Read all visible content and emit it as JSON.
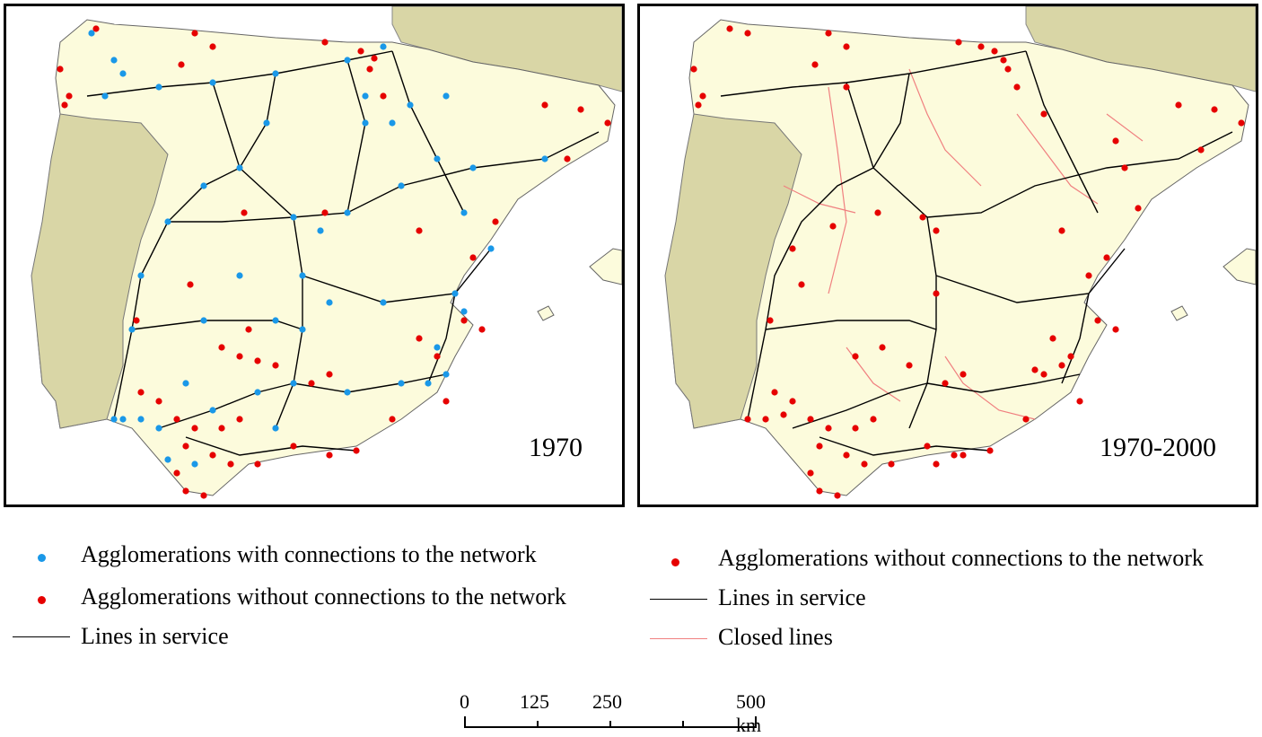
{
  "panels": [
    {
      "id": "left",
      "label": "1970"
    },
    {
      "id": "right",
      "label": "1970-2000"
    }
  ],
  "legend_left": [
    {
      "symbol": "dot",
      "color": "#1a98e8",
      "text": "Agglomerations with connections to the network"
    },
    {
      "symbol": "dot",
      "color": "#e60000",
      "text": "Agglomerations without connections to the network"
    },
    {
      "symbol": "line",
      "color": "#000000",
      "text": "Lines in service"
    }
  ],
  "legend_right": [
    {
      "symbol": "dot",
      "color": "#e60000",
      "text": "Agglomerations without connections to the network"
    },
    {
      "symbol": "line",
      "color": "#000000",
      "text": "Lines in service"
    },
    {
      "symbol": "line",
      "color": "#f08080",
      "text": "Closed lines"
    }
  ],
  "scale": {
    "ticks": [
      "0",
      "125",
      "250",
      "500 km"
    ]
  },
  "colors": {
    "land_spain": "#fcfbdc",
    "land_neighbors": "#d9d6a6",
    "sea": "#ffffff",
    "connected": "#1a98e8",
    "unconnected": "#e60000",
    "line": "#000000",
    "closed": "#f08080"
  }
}
